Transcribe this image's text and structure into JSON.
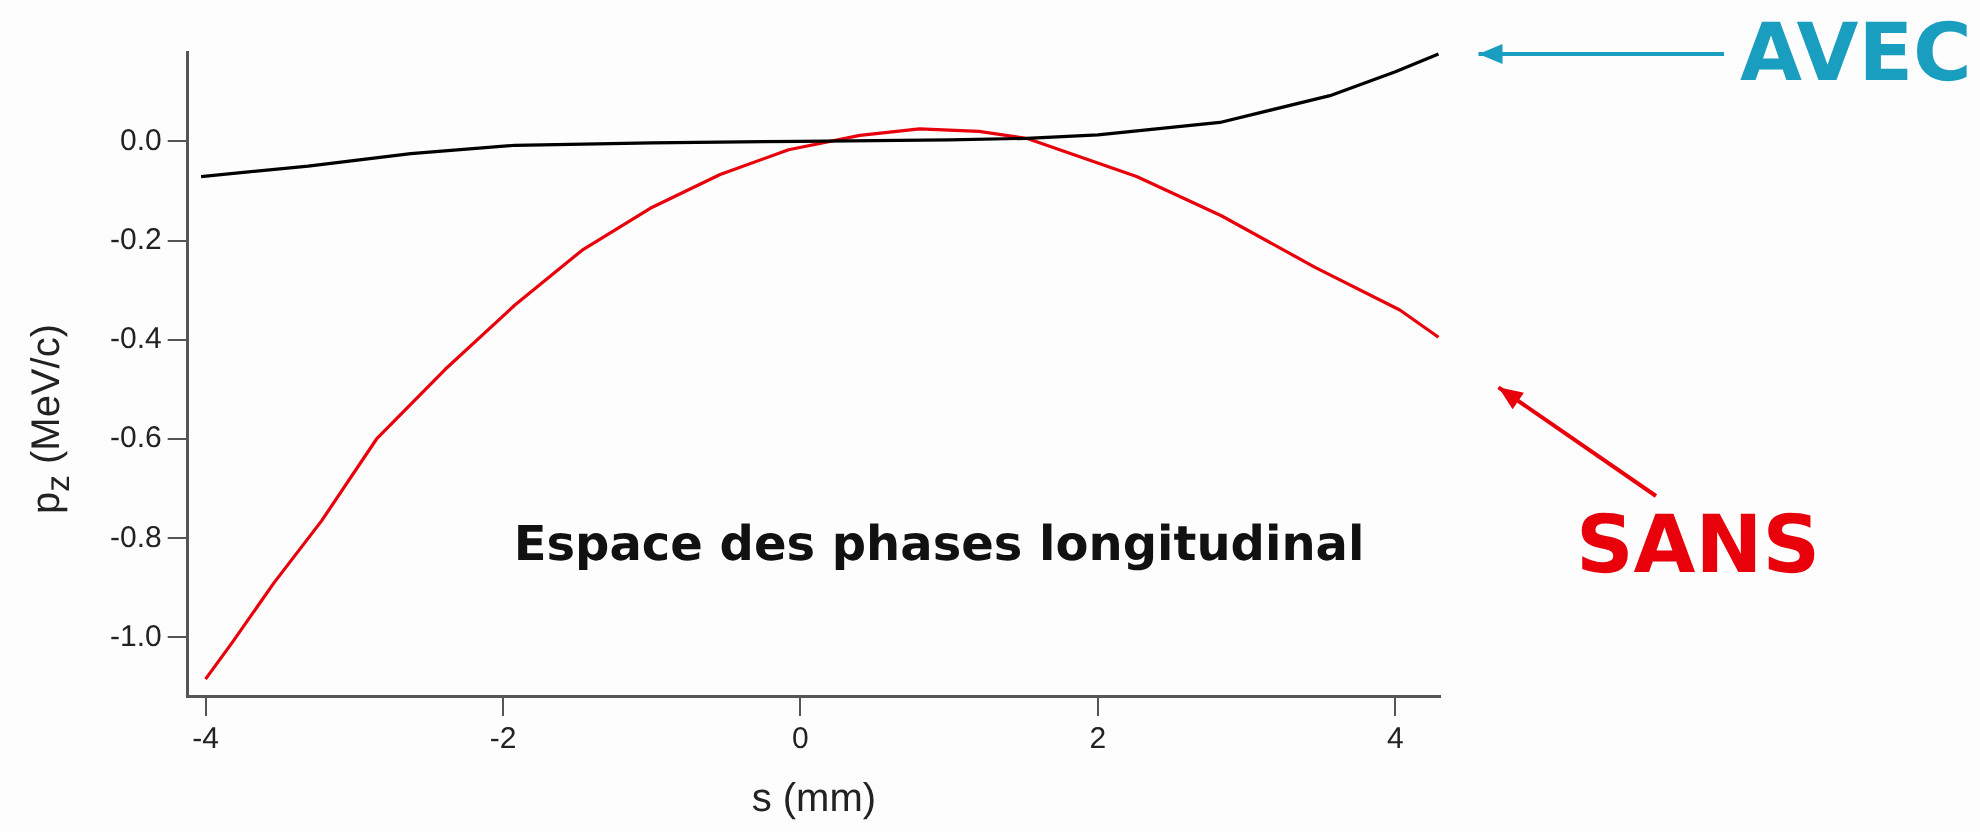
{
  "chart_data": {
    "type": "line",
    "xlabel": "s (mm)",
    "ylabel": "p$_{z}$ (MeV/c)",
    "annotations": [
      "Espace des phases longitudinal"
    ],
    "xlim": [
      -4.12,
      4.3
    ],
    "xticks": [
      -4,
      -2,
      0,
      2,
      4
    ],
    "ylim": [
      -1.118,
      0.18
    ],
    "yticks": [
      {
        "value": 0,
        "label": "0.0"
      },
      {
        "value": -0.2,
        "label": "-0.2"
      },
      {
        "value": -0.4,
        "label": "-0.4"
      },
      {
        "value": -0.6,
        "label": "-0.6"
      },
      {
        "value": -0.8,
        "label": "-0.8"
      },
      {
        "value": -1,
        "label": "-1.0"
      }
    ],
    "grid": false,
    "legend": false,
    "marker": "none",
    "series": [
      {
        "name": "AVEC",
        "color": "#000000",
        "x": [
          -4.03,
          -3.31,
          -2.62,
          -1.92,
          -1,
          0,
          1,
          1.52,
          2,
          2.82,
          3.56,
          4,
          4.29
        ],
        "values": [
          -0.071,
          -0.05,
          -0.025,
          -0.008,
          -0.003,
          0,
          0.003,
          0.006,
          0.013,
          0.038,
          0.092,
          0.14,
          0.176
        ]
      },
      {
        "name": "SANS",
        "color": "#e8000b",
        "x": [
          -4,
          -3.82,
          -3.54,
          -3.22,
          -2.85,
          -2.39,
          -1.92,
          -1.47,
          -1.01,
          -0.54,
          -0.08,
          0.4,
          0.8,
          1.2,
          1.52,
          2.26,
          2.83,
          3.46,
          4.03,
          4.29
        ],
        "values": [
          -1.084,
          -1.01,
          -0.89,
          -0.765,
          -0.6,
          -0.46,
          -0.33,
          -0.22,
          -0.135,
          -0.067,
          -0.017,
          0.012,
          0.025,
          0.02,
          0.006,
          -0.071,
          -0.15,
          -0.254,
          -0.34,
          -0.395
        ]
      }
    ]
  }
}
